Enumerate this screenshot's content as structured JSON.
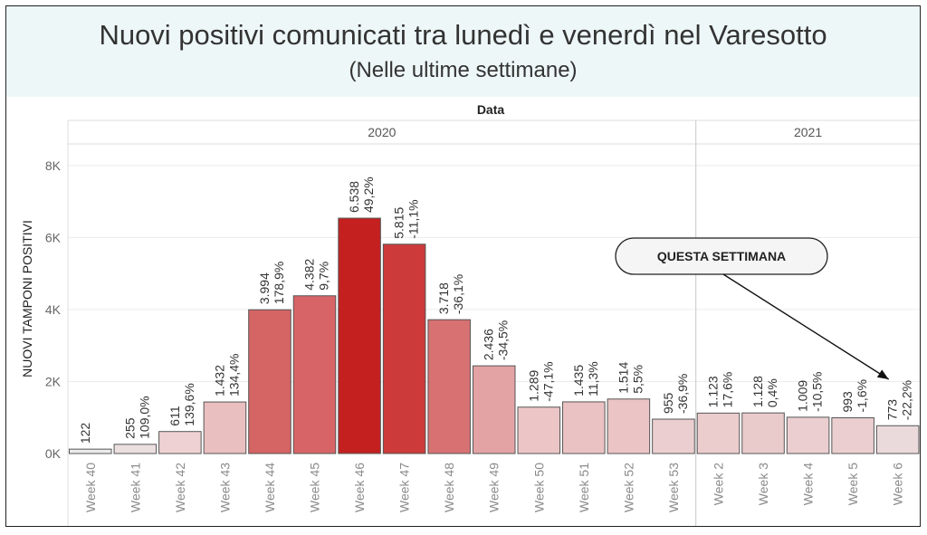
{
  "title": "Nuovi positivi comunicati tra lunedì e venerdì nel Varesotto",
  "subtitle": "(Nelle ultime settimane)",
  "chart_data": {
    "type": "bar",
    "header_label": "Data",
    "ylabel": "NUOVI TAMPONI POSITIVI",
    "ylim": [
      0,
      8600
    ],
    "yticks": [
      0,
      2000,
      4000,
      6000,
      8000
    ],
    "ytick_labels": [
      "0K",
      "2K",
      "4K",
      "6K",
      "8K"
    ],
    "groups": [
      {
        "label": "2020",
        "from": 0,
        "to": 13
      },
      {
        "label": "2021",
        "from": 14,
        "to": 18
      }
    ],
    "categories": [
      "Week 40",
      "Week 41",
      "Week 42",
      "Week 43",
      "Week 44",
      "Week 45",
      "Week 46",
      "Week 47",
      "Week 48",
      "Week 49",
      "Week 50",
      "Week 51",
      "Week 52",
      "Week 53",
      "Week 2",
      "Week 3",
      "Week 4",
      "Week 5",
      "Week 6"
    ],
    "values": [
      122,
      255,
      611,
      1432,
      3994,
      4382,
      6538,
      5815,
      3718,
      2436,
      1289,
      1435,
      1514,
      955,
      1123,
      1128,
      1009,
      993,
      773
    ],
    "value_labels": [
      "122",
      "255",
      "611",
      "1.432",
      "3.994",
      "4.382",
      "6.538",
      "5.815",
      "3.718",
      "2.436",
      "1.289",
      "1.435",
      "1.514",
      "955",
      "1.123",
      "1.128",
      "1.009",
      "993",
      "773"
    ],
    "pct_labels": [
      "",
      "109,0%",
      "139,6%",
      "134,4%",
      "178,9%",
      "9,7%",
      "49,2%",
      "-11,1%",
      "-36,1%",
      "-34,5%",
      "-47,1%",
      "11,3%",
      "5,5%",
      "-36,9%",
      "17,6%",
      "0,4%",
      "-10,5%",
      "-1,6%",
      "-22,2%"
    ],
    "colors": [
      "#ebebeb",
      "#ecdfe0",
      "#eed2d3",
      "#eabfc0",
      "#d56464",
      "#d76567",
      "#c42020",
      "#cc3b3a",
      "#d87172",
      "#e3a3a4",
      "#ecc6c7",
      "#ebc2c3",
      "#ebc5c6",
      "#ebcfd0",
      "#ebcdce",
      "#eacbcc",
      "#ebcfd0",
      "#ebcfd0",
      "#ebdadb"
    ],
    "callout": {
      "text": "QUESTA SETTIMANA",
      "target": "Week 6"
    }
  }
}
